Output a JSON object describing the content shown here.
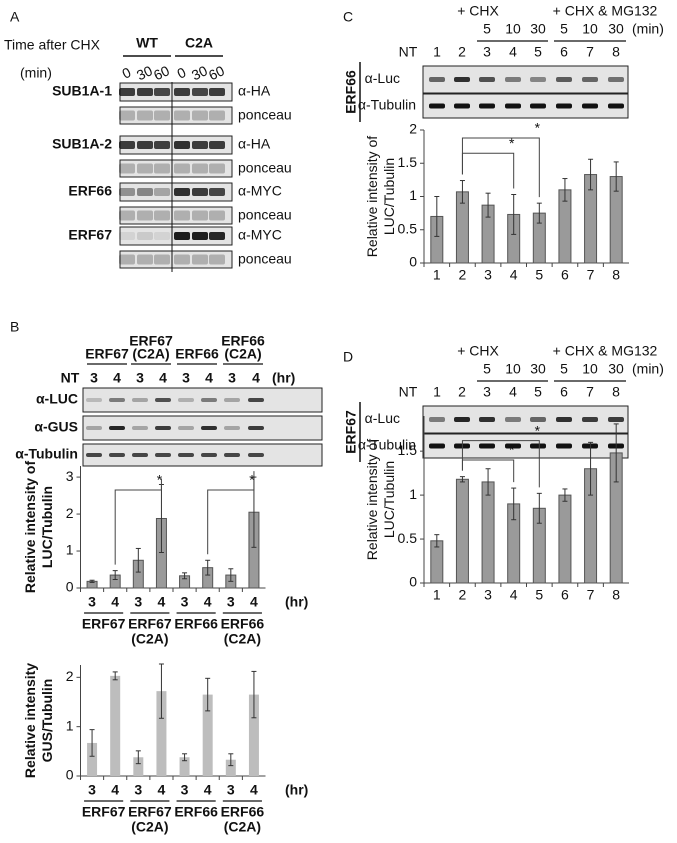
{
  "panel_a": {
    "letter": "A",
    "time_label": "Time after CHX",
    "unit": "(min)",
    "genotypes": [
      "WT",
      "C2A"
    ],
    "times": [
      "0",
      "30",
      "60"
    ],
    "rows": [
      {
        "protein": "SUB1A-1",
        "blot": "α-HA",
        "loading": "ponceau"
      },
      {
        "protein": "SUB1A-2",
        "blot": "α-HA",
        "loading": "ponceau"
      },
      {
        "protein": "ERF66",
        "blot": "α-MYC",
        "loading": "ponceau"
      },
      {
        "protein": "ERF67",
        "blot": "α-MYC",
        "loading": "ponceau"
      }
    ]
  },
  "panel_b": {
    "letter": "B",
    "lane_nt": "NT",
    "groups": [
      [
        "ERF67"
      ],
      [
        "ERF67",
        "(C2A)"
      ],
      [
        "ERF66"
      ],
      [
        "ERF66",
        "(C2A)"
      ]
    ],
    "lanes": [
      "3",
      "4"
    ],
    "unit": "(hr)",
    "blots": [
      "α-LUC",
      "α-GUS",
      "α-Tubulin"
    ]
  },
  "panel_c": {
    "letter": "C",
    "protein": "ERF66",
    "treatments": [
      {
        "label": "+ CHX",
        "times": [
          "5",
          "10",
          "30"
        ]
      },
      {
        "label": "+ CHX & MG132",
        "times": [
          "5",
          "10",
          "30"
        ]
      }
    ],
    "unit": "(min)",
    "lanes": [
      "NT",
      "1",
      "2",
      "3",
      "4",
      "5",
      "6",
      "7",
      "8"
    ],
    "blots": [
      "α-Luc",
      "α-Tubulin"
    ]
  },
  "panel_d": {
    "letter": "D",
    "protein": "ERF67",
    "treatments": [
      {
        "label": "+ CHX",
        "times": [
          "5",
          "10",
          "30"
        ]
      },
      {
        "label": "+ CHX & MG132",
        "times": [
          "5",
          "10",
          "30"
        ]
      }
    ],
    "unit": "(min)",
    "lanes": [
      "NT",
      "1",
      "2",
      "3",
      "4",
      "5",
      "6",
      "7",
      "8"
    ],
    "blots": [
      "α-Luc",
      "α-Tubulin"
    ]
  },
  "chart_data": [
    {
      "type": "bar",
      "ylabel": [
        "Relative intensity of",
        "LUC/Tubulin"
      ],
      "color": "#9a9a9a",
      "categories": [
        "3",
        "4",
        "3",
        "4",
        "3",
        "4",
        "3",
        "4"
      ],
      "groups": [
        [
          "ERF67"
        ],
        [
          "ERF67",
          "(C2A)"
        ],
        [
          "ERF66"
        ],
        [
          "ERF66",
          "(C2A)"
        ]
      ],
      "x_unit": "(hr)",
      "values": [
        0.18,
        0.35,
        0.75,
        1.88,
        0.33,
        0.55,
        0.35,
        2.05
      ],
      "errors": [
        0.03,
        0.12,
        0.32,
        0.92,
        0.08,
        0.2,
        0.17,
        0.95
      ],
      "brackets": [
        {
          "label": "*",
          "from": 1,
          "to": 3,
          "y": 2.65
        },
        {
          "label": "*",
          "from": 5,
          "to": 7,
          "y": 2.65
        }
      ],
      "ylim": [
        0,
        3.3
      ],
      "yticks": [
        0,
        1,
        2,
        3
      ]
    },
    {
      "type": "bar",
      "ylabel": [
        "Relative intensity",
        "GUS/Tubulin"
      ],
      "color": "#bdbdbd",
      "categories": [
        "3",
        "4",
        "3",
        "4",
        "3",
        "4",
        "3",
        "4"
      ],
      "groups": [
        [
          "ERF67"
        ],
        [
          "ERF67",
          "(C2A)"
        ],
        [
          "ERF66"
        ],
        [
          "ERF66",
          "(C2A)"
        ]
      ],
      "x_unit": "(hr)",
      "values": [
        0.67,
        2.03,
        0.38,
        1.72,
        0.38,
        1.65,
        0.33,
        1.65
      ],
      "errors": [
        0.27,
        0.08,
        0.13,
        0.55,
        0.07,
        0.33,
        0.12,
        0.47
      ],
      "ylim": [
        0,
        2.25
      ],
      "yticks": [
        0,
        1,
        2
      ]
    },
    {
      "type": "bar",
      "ylabel": [
        "Relative intensity of",
        "LUC/Tubulin"
      ],
      "color": "#9a9a9a",
      "categories": [
        "1",
        "2",
        "3",
        "4",
        "5",
        "6",
        "7",
        "8"
      ],
      "values": [
        0.7,
        1.07,
        0.87,
        0.73,
        0.75,
        1.1,
        1.33,
        1.3
      ],
      "errors": [
        0.3,
        0.17,
        0.18,
        0.3,
        0.15,
        0.17,
        0.23,
        0.22
      ],
      "brackets": [
        {
          "label": "*",
          "from": 1,
          "to": 3,
          "y": 1.65
        },
        {
          "label": "*",
          "from": 1,
          "to": 4,
          "y": 1.88
        }
      ],
      "ylim": [
        0,
        2
      ],
      "yticks": [
        0,
        0.5,
        1,
        1.5,
        2
      ]
    },
    {
      "type": "bar",
      "ylabel": [
        "Relative intensity of",
        "LUC/Tubulin"
      ],
      "color": "#9a9a9a",
      "categories": [
        "1",
        "2",
        "3",
        "4",
        "5",
        "6",
        "7",
        "8"
      ],
      "values": [
        0.48,
        1.18,
        1.15,
        0.9,
        0.85,
        1.0,
        1.3,
        1.48
      ],
      "errors": [
        0.07,
        0.03,
        0.15,
        0.18,
        0.17,
        0.07,
        0.3,
        0.33
      ],
      "brackets": [
        {
          "label": "*",
          "from": 1,
          "to": 3,
          "y": 1.4
        },
        {
          "label": "*",
          "from": 1,
          "to": 4,
          "y": 1.62
        }
      ],
      "ylim": [
        0,
        1.9
      ],
      "yticks": [
        0,
        0.5,
        1,
        1.5
      ]
    }
  ]
}
